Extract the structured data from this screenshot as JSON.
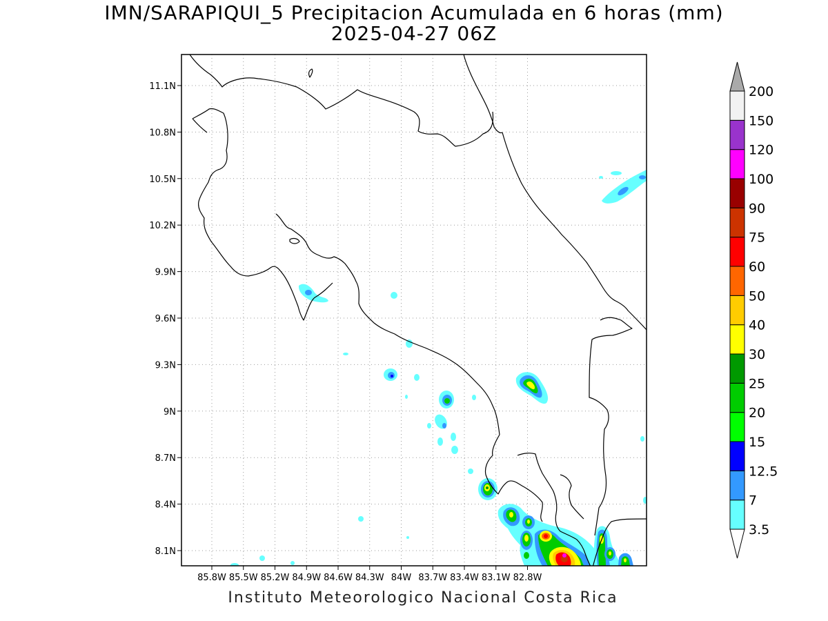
{
  "title": {
    "line1": "IMN/SARAPIQUI_5 Precipitacion Acumulada en 6 horas (mm)",
    "line2": "2025-04-27 06Z"
  },
  "credit": "Instituto Meteorologico Nacional Costa Rica",
  "map": {
    "lon_labels": [
      "85.8W",
      "85.5W",
      "85.2W",
      "84.9W",
      "84.6W",
      "84.3W",
      "84W",
      "83.7W",
      "83.4W",
      "83.1W",
      "82.8W"
    ],
    "lat_labels": [
      "11.1N",
      "10.8N",
      "10.5N",
      "10.2N",
      "9.9N",
      "9.6N",
      "9.3N",
      "9N",
      "8.7N",
      "8.4N",
      "8.1N"
    ],
    "gridlines": "dotted"
  },
  "colorbar": {
    "labels": [
      "3.5",
      "7",
      "12.5",
      "15",
      "20",
      "25",
      "30",
      "40",
      "50",
      "60",
      "75",
      "90",
      "100",
      "120",
      "150",
      "200"
    ],
    "colors": [
      "#66ffff",
      "#3399ff",
      "#0000ff",
      "#00ff00",
      "#00cc00",
      "#009900",
      "#ffff00",
      "#ffcc00",
      "#ff6600",
      "#ff0000",
      "#cc3300",
      "#990000",
      "#ff00ff",
      "#9933cc",
      "#f2f2f2"
    ],
    "over_color": "#aaaaaa",
    "under_color": "#ffffff"
  }
}
